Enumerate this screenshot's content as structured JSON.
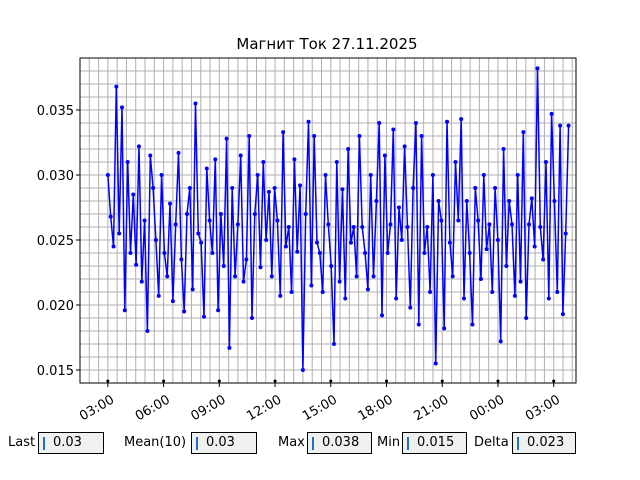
{
  "chart_data": {
    "type": "line",
    "title": "Магнит Ток 27.11.2025",
    "xlabel": "",
    "ylabel": "",
    "ylim": [
      0.014,
      0.039
    ],
    "yticks": [
      0.015,
      0.02,
      0.025,
      0.03,
      0.035
    ],
    "ytick_labels": [
      "0.015",
      "0.020",
      "0.025",
      "0.030",
      "0.035"
    ],
    "xlim": [
      1.5,
      28.2
    ],
    "xticks": [
      3,
      6,
      9,
      12,
      15,
      18,
      21,
      24,
      27
    ],
    "xtick_labels": [
      "03:00",
      "06:00",
      "09:00",
      "12:00",
      "15:00",
      "18:00",
      "21:00",
      "00:00",
      "03:00"
    ],
    "x_start": 3.0,
    "x_end": 27.8,
    "grid": true,
    "series_color": "#0000ff",
    "series": [
      {
        "values": [
          0.03,
          0.0268,
          0.0245,
          0.0368,
          0.0255,
          0.0352,
          0.0196,
          0.031,
          0.024,
          0.0285,
          0.0231,
          0.0322,
          0.0218,
          0.0265,
          0.018,
          0.0315,
          0.029,
          0.025,
          0.0207,
          0.03,
          0.024,
          0.0222,
          0.0278,
          0.0203,
          0.0262,
          0.0317,
          0.0235,
          0.0195,
          0.027,
          0.029,
          0.0212,
          0.0355,
          0.0255,
          0.0248,
          0.0191,
          0.0305,
          0.0265,
          0.024,
          0.0312,
          0.0196,
          0.027,
          0.023,
          0.0328,
          0.0167,
          0.029,
          0.0222,
          0.0262,
          0.0315,
          0.0218,
          0.0235,
          0.033,
          0.019,
          0.027,
          0.03,
          0.0229,
          0.031,
          0.025,
          0.0287,
          0.0222,
          0.029,
          0.0265,
          0.0207,
          0.0333,
          0.0245,
          0.026,
          0.021,
          0.0312,
          0.0241,
          0.0292,
          0.015,
          0.027,
          0.0341,
          0.0215,
          0.033,
          0.0248,
          0.024,
          0.021,
          0.03,
          0.0262,
          0.023,
          0.017,
          0.031,
          0.0218,
          0.0289,
          0.0205,
          0.032,
          0.0248,
          0.026,
          0.0222,
          0.033,
          0.026,
          0.024,
          0.0212,
          0.03,
          0.0222,
          0.028,
          0.034,
          0.0192,
          0.0315,
          0.024,
          0.0262,
          0.0335,
          0.0205,
          0.0275,
          0.025,
          0.0322,
          0.026,
          0.0198,
          0.029,
          0.034,
          0.0185,
          0.033,
          0.024,
          0.026,
          0.021,
          0.03,
          0.0155,
          0.028,
          0.0265,
          0.0182,
          0.0341,
          0.0248,
          0.0222,
          0.031,
          0.0265,
          0.0343,
          0.0205,
          0.028,
          0.024,
          0.0185,
          0.029,
          0.0265,
          0.022,
          0.03,
          0.0243,
          0.0262,
          0.021,
          0.029,
          0.025,
          0.0172,
          0.032,
          0.023,
          0.028,
          0.0262,
          0.0207,
          0.03,
          0.0218,
          0.0333,
          0.019,
          0.0262,
          0.0282,
          0.0245,
          0.0382,
          0.026,
          0.0235,
          0.031,
          0.0205,
          0.0347,
          0.028,
          0.021,
          0.0338,
          0.0193,
          0.0255,
          0.0338
        ]
      }
    ]
  },
  "stats": {
    "last": {
      "label": "Last",
      "value": "0.03"
    },
    "mean": {
      "label": "Mean(10)",
      "value": "0.03"
    },
    "max": {
      "label": "Max",
      "value": "0.038"
    },
    "min": {
      "label": "Min",
      "value": "0.015"
    },
    "delta": {
      "label": "Delta",
      "value": "0.023"
    }
  }
}
